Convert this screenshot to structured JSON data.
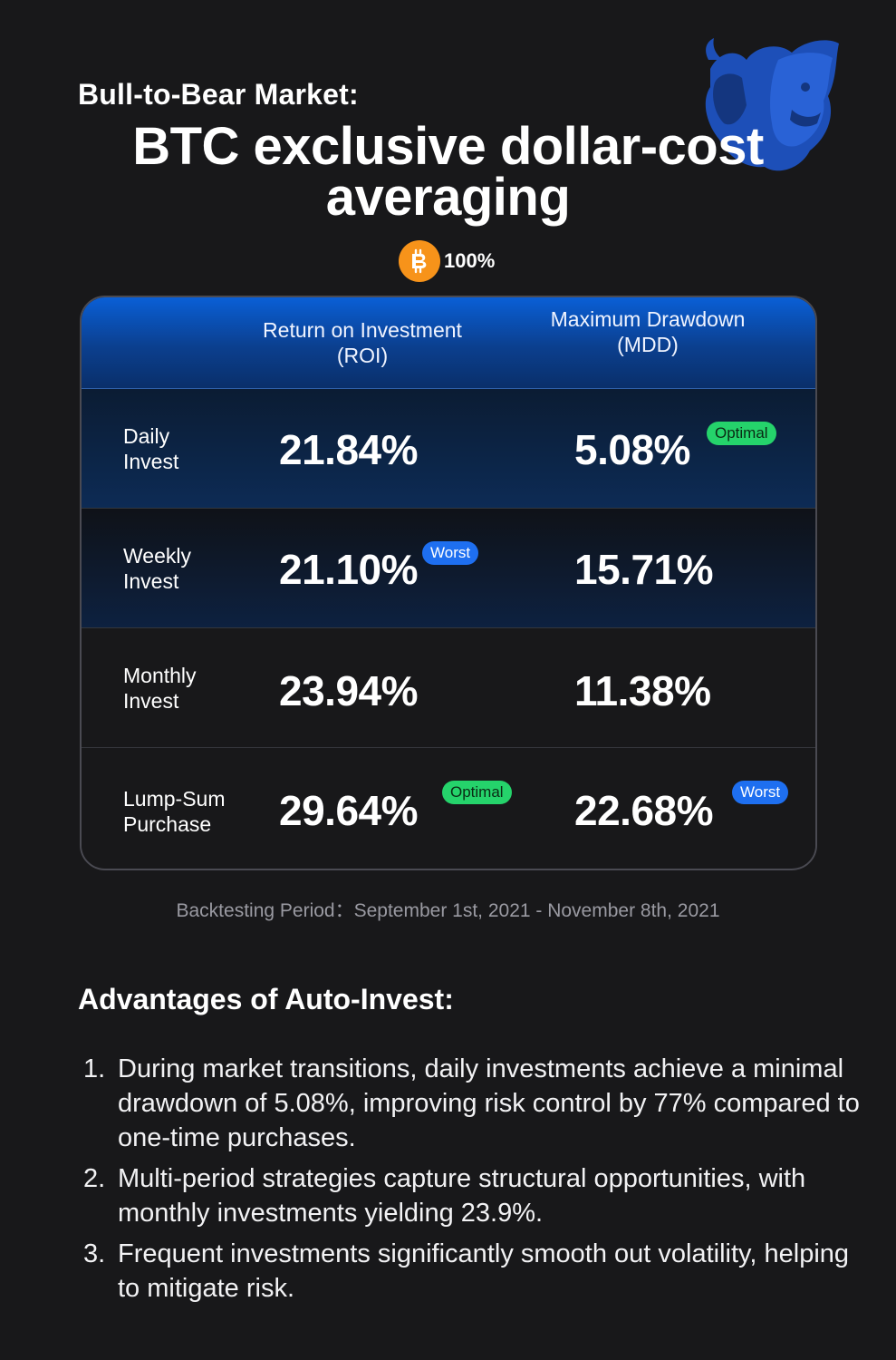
{
  "header": {
    "subtitle": "Bull-to-Bear Market:",
    "title": "BTC exclusive dollar-cost averaging",
    "allocation_percent": "100%",
    "coin_icon": "bitcoin-icon",
    "mascot_icon": "bull-bear-icon"
  },
  "table": {
    "columns": [
      "Return on Investment (ROI)",
      "Maximum Drawdown (MDD)"
    ],
    "rows": [
      {
        "label": "Daily Invest",
        "roi": "21.84%",
        "mdd": "5.08%",
        "roi_badge": "",
        "mdd_badge": "Optimal"
      },
      {
        "label": "Weekly Invest",
        "roi": "21.10%",
        "mdd": "15.71%",
        "roi_badge": "Worst",
        "mdd_badge": ""
      },
      {
        "label": "Monthly Invest",
        "roi": "23.94%",
        "mdd": "11.38%",
        "roi_badge": "",
        "mdd_badge": ""
      },
      {
        "label": "Lump-Sum Purchase",
        "roi": "29.64%",
        "mdd": "22.68%",
        "roi_badge": "Optimal",
        "mdd_badge": "Worst"
      }
    ]
  },
  "period": "Backtesting Period：September 1st, 2021 - November 8th, 2021",
  "advantages": {
    "title": "Advantages of Auto-Invest:",
    "items": [
      {
        "num": "1.",
        "text": "During market transitions, daily investments achieve a minimal drawdown of 5.08%, improving risk control by 77% compared to one-time purchases."
      },
      {
        "num": "2.",
        "text": "Multi-period strategies capture structural opportunities, with monthly investments yielding 23.9%."
      },
      {
        "num": "3.",
        "text": "Frequent investments significantly smooth out volatility, helping to mitigate risk."
      }
    ]
  },
  "colors": {
    "background": "#18181a",
    "header_blue": "#0a5fd6",
    "optimal_green": "#25d36b",
    "worst_blue": "#1e6ff0",
    "bitcoin_orange": "#f7931a"
  }
}
